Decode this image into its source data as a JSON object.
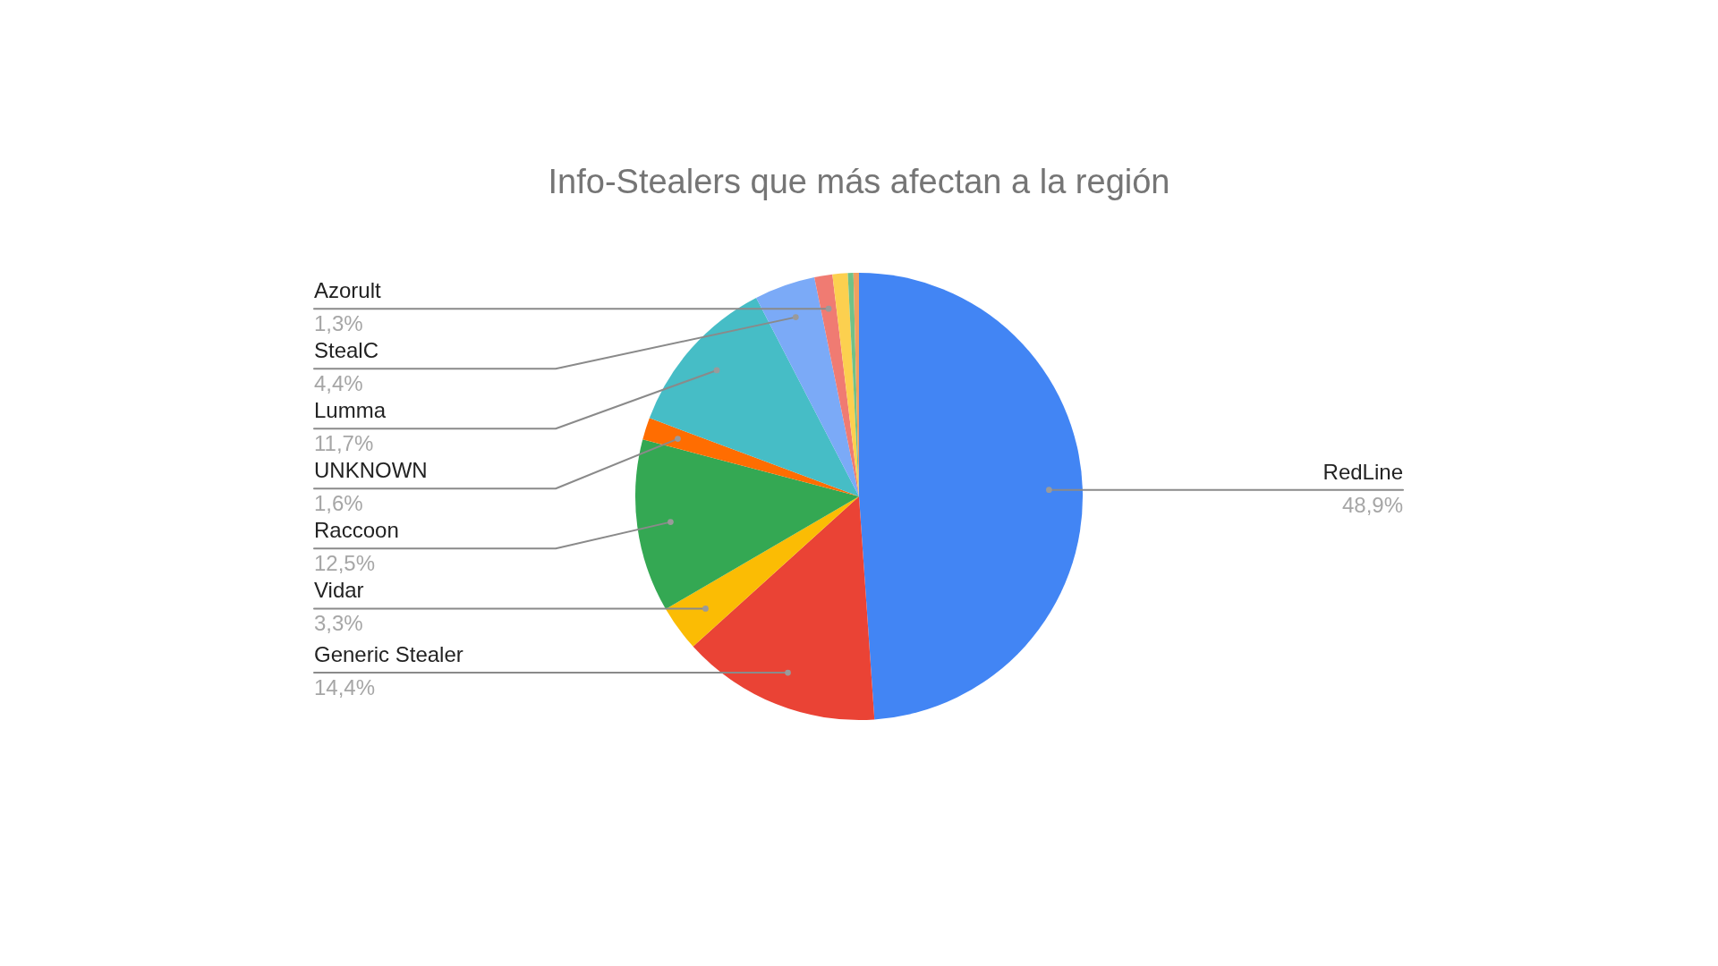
{
  "chart_data": {
    "type": "pie",
    "title": "Info-Stealers que más afectan a la región",
    "categories": [
      "RedLine",
      "Generic Stealer",
      "Vidar",
      "Raccoon",
      "UNKNOWN",
      "Lumma",
      "StealC",
      "Azorult",
      null,
      null,
      null
    ],
    "values": [
      48.9,
      14.4,
      3.3,
      12.5,
      1.6,
      11.7,
      4.4,
      1.3,
      1.1,
      0.4,
      0.4
    ],
    "colors": [
      "#4285f4",
      "#ea4335",
      "#fbbc04",
      "#34a853",
      "#ff6d01",
      "#46bdc6",
      "#7baaf7",
      "#f07b72",
      "#fcd04f",
      "#71c287",
      "#f0a060"
    ],
    "value_labels": [
      "48,9%",
      "14,4%",
      "3,3%",
      "12,5%",
      "1,6%",
      "11,7%",
      "4,4%",
      "1,3%",
      null,
      null,
      null
    ]
  }
}
